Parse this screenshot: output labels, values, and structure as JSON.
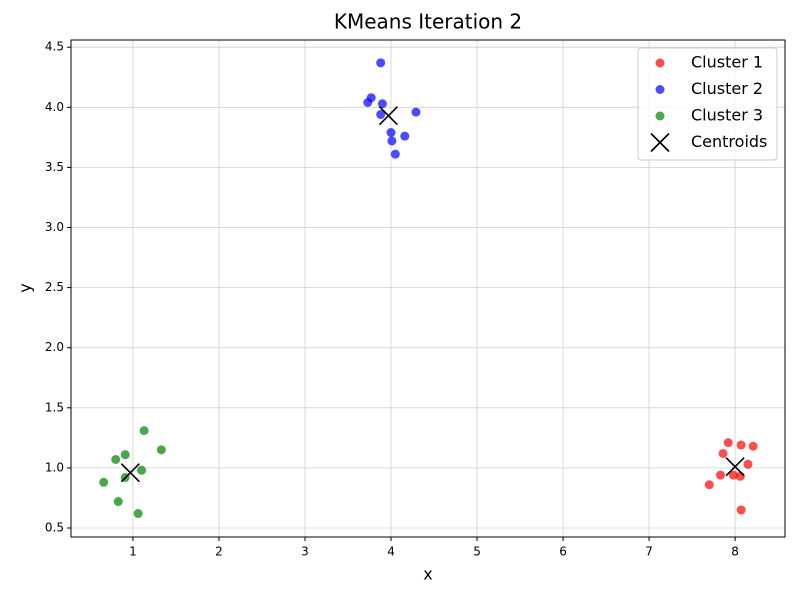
{
  "chart_data": {
    "type": "scatter",
    "title": "KMeans Iteration 2",
    "x_label": "x",
    "y_label": "y",
    "xlim": [
      0.28,
      8.58
    ],
    "ylim": [
      0.425,
      4.56
    ],
    "xticks": [
      1,
      2,
      3,
      4,
      5,
      6,
      7,
      8
    ],
    "yticks": [
      0.5,
      {
        "value": 1,
        "label": "1.0"
      },
      1.5,
      {
        "value": 2,
        "label": "2.0"
      },
      2.5,
      {
        "value": 3,
        "label": "3.0"
      },
      3.5,
      {
        "value": 4,
        "label": "4.0"
      },
      4.5
    ],
    "grid": true,
    "legend": "upper right",
    "series": [
      {
        "name": "Cluster 1",
        "color": "#ff0000",
        "marker": "o",
        "x": [
          7.92,
          8.07,
          8.21,
          7.86,
          8.15,
          7.83,
          7.98,
          8.06,
          7.7,
          8.07
        ],
        "values": [
          1.21,
          1.19,
          1.18,
          1.12,
          1.03,
          0.94,
          0.94,
          0.93,
          0.86,
          0.65
        ]
      },
      {
        "name": "Cluster 2",
        "color": "#0000ff",
        "marker": "o",
        "x": [
          3.88,
          3.77,
          3.73,
          3.9,
          3.88,
          4.29,
          4.0,
          4.16,
          4.01,
          4.05
        ],
        "values": [
          4.37,
          4.08,
          4.04,
          4.03,
          3.94,
          3.96,
          3.79,
          3.76,
          3.72,
          3.61
        ]
      },
      {
        "name": "Cluster 3",
        "color": "#008000",
        "marker": "o",
        "x": [
          1.13,
          1.33,
          0.91,
          0.8,
          1.1,
          0.91,
          0.66,
          0.83,
          1.06
        ],
        "values": [
          1.31,
          1.15,
          1.11,
          1.07,
          0.98,
          0.92,
          0.88,
          0.72,
          0.62
        ]
      },
      {
        "name": "Centroids",
        "color": "#000000",
        "marker": "x",
        "x": [
          8.0,
          3.97,
          0.97
        ],
        "values": [
          1.01,
          3.93,
          0.96
        ]
      }
    ]
  }
}
